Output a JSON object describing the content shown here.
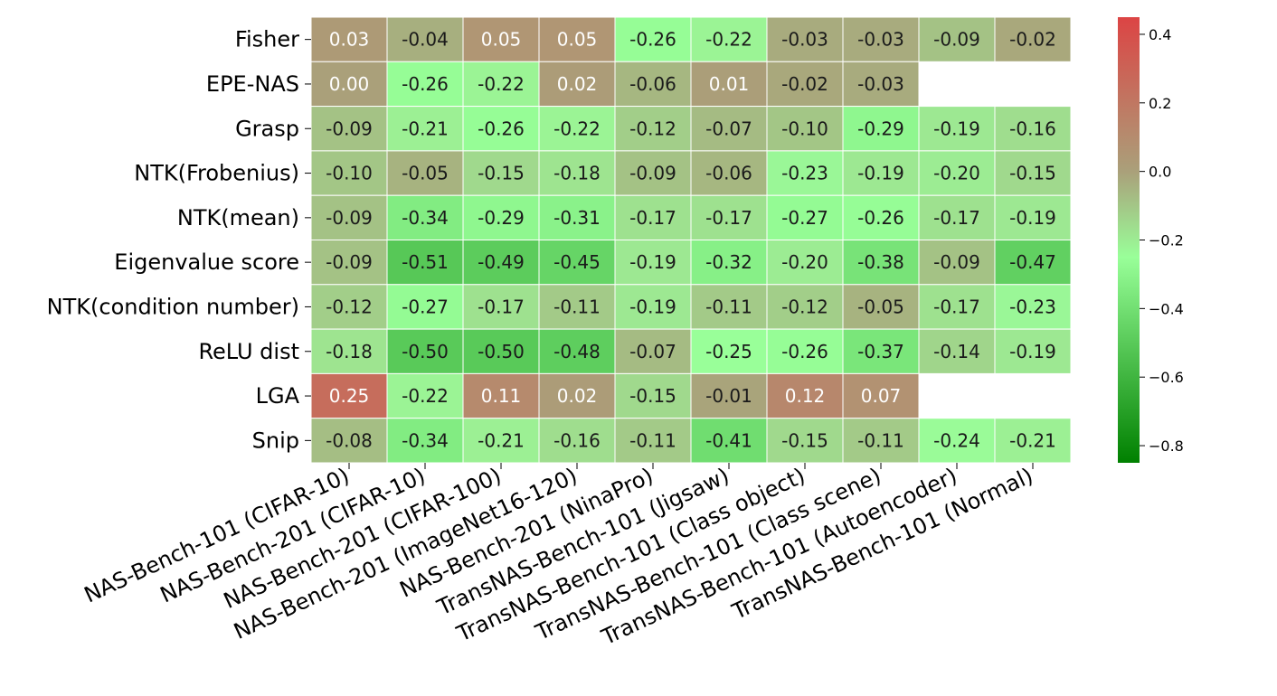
{
  "chart_data": {
    "type": "heatmap",
    "rows": [
      "Fisher",
      "EPE-NAS",
      "Grasp",
      "NTK(Frobenius)",
      "NTK(mean)",
      "Eigenvalue score",
      "NTK(condition number)",
      "ReLU dist",
      "LGA",
      "Snip"
    ],
    "columns": [
      "NAS-Bench-101 (CIFAR-10)",
      "NAS-Bench-201 (CIFAR-10)",
      "NAS-Bench-201 (CIFAR-100)",
      "NAS-Bench-201 (ImageNet16-120)",
      "NAS-Bench-201 (NinaPro)",
      "TransNAS-Bench-101 (Jigsaw)",
      "TransNAS-Bench-101 (Class object)",
      "TransNAS-Bench-101 (Class scene)",
      "TransNAS-Bench-101 (Autoencoder)",
      "TransNAS-Bench-101 (Normal)"
    ],
    "values": [
      [
        0.03,
        -0.04,
        0.05,
        0.05,
        -0.26,
        -0.22,
        -0.03,
        -0.03,
        -0.09,
        -0.02
      ],
      [
        0.0,
        -0.26,
        -0.22,
        0.02,
        -0.06,
        0.01,
        -0.02,
        -0.03,
        null,
        null
      ],
      [
        -0.09,
        -0.21,
        -0.26,
        -0.22,
        -0.12,
        -0.07,
        -0.1,
        -0.29,
        -0.19,
        -0.16
      ],
      [
        -0.1,
        -0.05,
        -0.15,
        -0.18,
        -0.09,
        -0.06,
        -0.23,
        -0.19,
        -0.2,
        -0.15
      ],
      [
        -0.09,
        -0.34,
        -0.29,
        -0.31,
        -0.17,
        -0.17,
        -0.27,
        -0.26,
        -0.17,
        -0.19
      ],
      [
        -0.09,
        -0.51,
        -0.49,
        -0.45,
        -0.19,
        -0.32,
        -0.2,
        -0.38,
        -0.09,
        -0.47
      ],
      [
        -0.12,
        -0.27,
        -0.17,
        -0.11,
        -0.19,
        -0.11,
        -0.12,
        -0.05,
        -0.17,
        -0.23
      ],
      [
        -0.18,
        -0.5,
        -0.5,
        -0.48,
        -0.07,
        -0.25,
        -0.26,
        -0.37,
        -0.14,
        -0.19
      ],
      [
        0.25,
        -0.22,
        0.11,
        0.02,
        -0.15,
        -0.01,
        0.12,
        0.07,
        null,
        null
      ],
      [
        -0.08,
        -0.34,
        -0.21,
        -0.16,
        -0.11,
        -0.41,
        -0.15,
        -0.11,
        -0.24,
        -0.21
      ]
    ],
    "labels": [
      [
        "0.03",
        "-0.04",
        "0.05",
        "0.05",
        "-0.26",
        "-0.22",
        "-0.03",
        "-0.03",
        "-0.09",
        "-0.02"
      ],
      [
        "0.00",
        "-0.26",
        "-0.22",
        "0.02",
        "-0.06",
        "0.01",
        "-0.02",
        "-0.03",
        "",
        ""
      ],
      [
        "-0.09",
        "-0.21",
        "-0.26",
        "-0.22",
        "-0.12",
        "-0.07",
        "-0.10",
        "-0.29",
        "-0.19",
        "-0.16"
      ],
      [
        "-0.10",
        "-0.05",
        "-0.15",
        "-0.18",
        "-0.09",
        "-0.06",
        "-0.23",
        "-0.19",
        "-0.20",
        "-0.15"
      ],
      [
        "-0.09",
        "-0.34",
        "-0.29",
        "-0.31",
        "-0.17",
        "-0.17",
        "-0.27",
        "-0.26",
        "-0.17",
        "-0.19"
      ],
      [
        "-0.09",
        "-0.51",
        "-0.49",
        "-0.45",
        "-0.19",
        "-0.32",
        "-0.20",
        "-0.38",
        "-0.09",
        "-0.47"
      ],
      [
        "-0.12",
        "-0.27",
        "-0.17",
        "-0.11",
        "-0.19",
        "-0.11",
        "-0.12",
        "-0.05",
        "-0.17",
        "-0.23"
      ],
      [
        "-0.18",
        "-0.50",
        "-0.50",
        "-0.48",
        "-0.07",
        "-0.25",
        "-0.26",
        "-0.37",
        "-0.14",
        "-0.19"
      ],
      [
        "0.25",
        "-0.22",
        "0.11",
        "0.02",
        "-0.15",
        "-0.01",
        "0.12",
        "0.07",
        "",
        ""
      ],
      [
        "-0.08",
        "-0.34",
        "-0.21",
        "-0.16",
        "-0.11",
        "-0.41",
        "-0.15",
        "-0.11",
        "-0.24",
        "-0.21"
      ]
    ],
    "colorbar": {
      "range": [
        -0.85,
        0.45
      ],
      "ticks": [
        0.4,
        0.2,
        0.0,
        -0.2,
        -0.4,
        -0.6,
        -0.8
      ],
      "tick_labels": [
        "0.4",
        "0.2",
        "0.0",
        "−0.2",
        "−0.4",
        "−0.6",
        "−0.8"
      ],
      "colormap_stops": [
        {
          "value": -0.85,
          "color": "#008000"
        },
        {
          "value": -0.25,
          "color": "#99ff99"
        },
        {
          "value": 0.0,
          "color": "#aaa07a"
        },
        {
          "value": 0.45,
          "color": "#dc4444"
        }
      ]
    },
    "title": "",
    "xlabel": "",
    "ylabel": "",
    "cell_border_color": "#ffffff",
    "text_color_dark": "#1a1a1a",
    "text_color_light": "#ffffff"
  }
}
